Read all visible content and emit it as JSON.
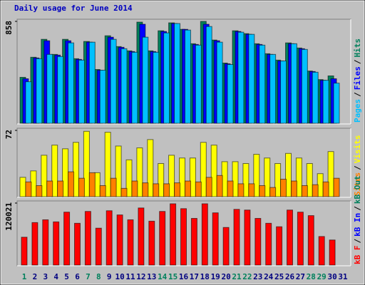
{
  "chart_data": {
    "type": "bar",
    "title": "Daily usage for June 2014",
    "title_color": "#0000c0",
    "categories": [
      "1",
      "2",
      "3",
      "4",
      "5",
      "6",
      "7",
      "8",
      "9",
      "10",
      "11",
      "12",
      "13",
      "14",
      "15",
      "16",
      "17",
      "18",
      "19",
      "20",
      "21",
      "22",
      "23",
      "24",
      "25",
      "26",
      "27",
      "28",
      "29",
      "30",
      "31"
    ],
    "label_color": "#000080",
    "weekends": [
      "1",
      "7",
      "8",
      "14",
      "15",
      "21",
      "22",
      "28",
      "29"
    ],
    "weekend_color": "#00805c",
    "legend_separator": "/",
    "panels": [
      {
        "ylim": [
          0,
          858
        ],
        "yticks": [
          858
        ],
        "series": [
          {
            "name": "Pages",
            "color": "#00c0ff",
            "values": [
              350,
              544,
              580,
              562,
              677,
              532,
              683,
              447,
              707,
              628,
              598,
              725,
              598,
              761,
              840,
              785,
              658,
              815,
              683,
              495,
              767,
              749,
              658,
              580,
              525,
              670,
              622,
              430,
              362,
              338,
              null
            ]
          },
          {
            "name": "Files",
            "color": "#0000ff",
            "values": [
              375,
              550,
              695,
              574,
              695,
              538,
              683,
              447,
              725,
              640,
              604,
              834,
              604,
              773,
              840,
              791,
              664,
              834,
              695,
              501,
              773,
              749,
              664,
              580,
              525,
              670,
              628,
              436,
              362,
              375,
              null
            ]
          },
          {
            "name": "Hits",
            "color": "#00805c",
            "values": [
              387,
              556,
              707,
              580,
              707,
              544,
              689,
              453,
              737,
              646,
              610,
              852,
              610,
              779,
              846,
              791,
              670,
              858,
              701,
              507,
              779,
              755,
              670,
              586,
              532,
              677,
              634,
              440,
              368,
              399,
              null
            ]
          }
        ]
      },
      {
        "ylim": [
          0,
          72
        ],
        "yticks": [
          72
        ],
        "series": [
          {
            "name": "Sites",
            "color": "#ff8000",
            "values": [
              16,
              12,
              17,
              17,
              27,
              20,
              26,
              12,
              20,
              9,
              17,
              15,
              14,
              14,
              15,
              17,
              16,
              21,
              23,
              17,
              14,
              14,
              12,
              10,
              19,
              17,
              12,
              13,
              16,
              20,
              null
            ]
          },
          {
            "name": "Visits",
            "color": "#ffff00",
            "values": [
              21,
              28,
              45,
              56,
              52,
              59,
              71,
              26,
              70,
              55,
              40,
              53,
              62,
              36,
              45,
              42,
              42,
              59,
              56,
              38,
              38,
              36,
              46,
              42,
              36,
              47,
              42,
              36,
              25,
              49,
              null
            ]
          }
        ]
      },
      {
        "ylim": [
          0,
          120021
        ],
        "yticks": [
          120021
        ],
        "series": [
          {
            "name": "kB F",
            "color": "#ff0000",
            "values": [
              53940,
              82259,
              87653,
              83609,
              102489,
              80911,
              103835,
              71472,
              105185,
              97092,
              87653,
              110577,
              84956,
              103835,
              118669,
              109230,
              90350,
              118669,
              101138,
              72820,
              107880,
              106532,
              90350,
              80911,
              74168,
              106532,
              102489,
              95745,
              55289,
              48547,
              null
            ]
          },
          {
            "name": "kB In",
            "color": "#0000ff"
          },
          {
            "name": "kB Out",
            "color": "#00805c"
          }
        ]
      }
    ]
  }
}
